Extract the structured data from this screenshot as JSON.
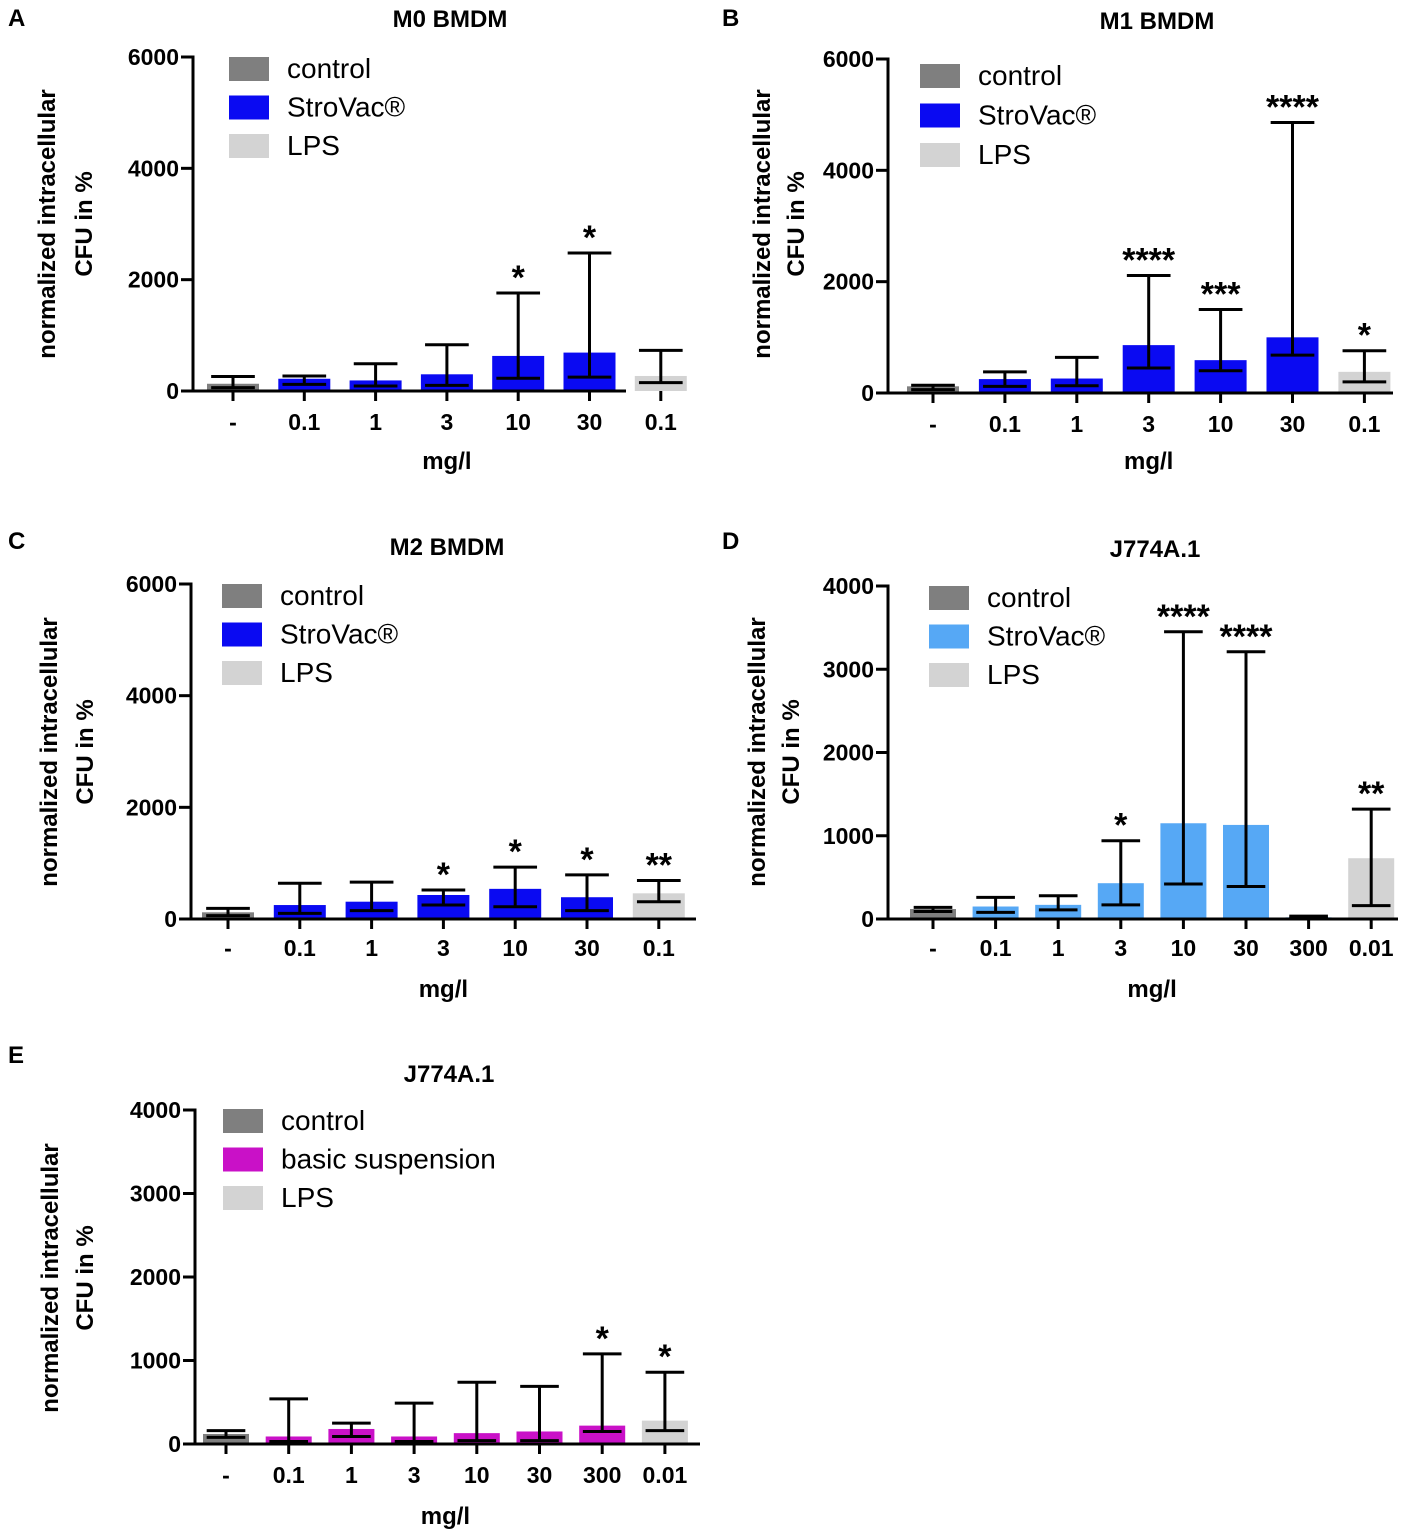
{
  "chart_data": [
    {
      "id": "A",
      "type": "bar",
      "panel_label": "A",
      "title": "M0 BMDM",
      "ylabel_line1": "normalized intracellular",
      "ylabel_line2": "CFU in %",
      "xlabel": "mg/l",
      "ylim": [
        0,
        6000
      ],
      "yticks": [
        0,
        2000,
        4000,
        6000
      ],
      "categories": [
        "-",
        "0.1",
        "1",
        "3",
        "10",
        "30",
        "0.1"
      ],
      "groups": [
        "control",
        "strovac",
        "strovac",
        "strovac",
        "strovac",
        "strovac",
        "lps"
      ],
      "values": [
        130,
        220,
        190,
        300,
        630,
        690,
        270
      ],
      "err_low": [
        60,
        120,
        90,
        100,
        230,
        250,
        150
      ],
      "err_high": [
        260,
        270,
        490,
        830,
        1760,
        2480,
        730
      ],
      "significance": [
        "",
        "",
        "",
        "",
        "*",
        "*",
        ""
      ],
      "legend": [
        {
          "key": "control",
          "label": "control",
          "color": "#7f7f7f"
        },
        {
          "key": "strovac",
          "label": "StroVac®",
          "color": "#0a0af2"
        },
        {
          "key": "lps",
          "label": "LPS",
          "color": "#d3d3d3"
        }
      ]
    },
    {
      "id": "B",
      "type": "bar",
      "panel_label": "B",
      "title": "M1 BMDM",
      "ylabel_line1": "normalized intracellular",
      "ylabel_line2": "CFU in %",
      "xlabel": "mg/l",
      "ylim": [
        0,
        6000
      ],
      "yticks": [
        0,
        2000,
        4000,
        6000
      ],
      "categories": [
        "-",
        "0.1",
        "1",
        "3",
        "10",
        "30",
        "0.1"
      ],
      "groups": [
        "control",
        "strovac",
        "strovac",
        "strovac",
        "strovac",
        "strovac",
        "lps"
      ],
      "values": [
        120,
        250,
        260,
        860,
        590,
        1000,
        380
      ],
      "err_low": [
        60,
        120,
        130,
        450,
        400,
        680,
        200
      ],
      "err_high": [
        140,
        380,
        640,
        2110,
        1500,
        4860,
        760
      ],
      "significance": [
        "",
        "",
        "",
        "****",
        "***",
        "****",
        "*"
      ],
      "legend": [
        {
          "key": "control",
          "label": "control",
          "color": "#7f7f7f"
        },
        {
          "key": "strovac",
          "label": "StroVac®",
          "color": "#0a0af2"
        },
        {
          "key": "lps",
          "label": "LPS",
          "color": "#d3d3d3"
        }
      ]
    },
    {
      "id": "C",
      "type": "bar",
      "panel_label": "C",
      "title": "M2 BMDM",
      "ylabel_line1": "normalized intracellular",
      "ylabel_line2": "CFU in %",
      "xlabel": "mg/l",
      "ylim": [
        0,
        6000
      ],
      "yticks": [
        0,
        2000,
        4000,
        6000
      ],
      "categories": [
        "-",
        "0.1",
        "1",
        "3",
        "10",
        "30",
        "0.1"
      ],
      "groups": [
        "control",
        "strovac",
        "strovac",
        "strovac",
        "strovac",
        "strovac",
        "lps"
      ],
      "values": [
        120,
        250,
        310,
        430,
        540,
        390,
        460
      ],
      "err_low": [
        60,
        100,
        150,
        250,
        220,
        150,
        310
      ],
      "err_high": [
        190,
        640,
        660,
        520,
        930,
        790,
        690
      ],
      "significance": [
        "",
        "",
        "",
        "*",
        "*",
        "*",
        "**"
      ],
      "legend": [
        {
          "key": "control",
          "label": "control",
          "color": "#7f7f7f"
        },
        {
          "key": "strovac",
          "label": "StroVac®",
          "color": "#0a0af2"
        },
        {
          "key": "lps",
          "label": "LPS",
          "color": "#d3d3d3"
        }
      ]
    },
    {
      "id": "D",
      "type": "bar",
      "panel_label": "D",
      "title": "J774A.1",
      "ylabel_line1": "normalized intracellular",
      "ylabel_line2": "CFU in %",
      "xlabel": "mg/l",
      "ylim": [
        0,
        4000
      ],
      "yticks": [
        0,
        1000,
        2000,
        3000,
        4000
      ],
      "categories": [
        "-",
        "0.1",
        "1",
        "3",
        "10",
        "30",
        "300",
        "0.01"
      ],
      "groups": [
        "control",
        "strovac",
        "strovac",
        "strovac",
        "strovac",
        "strovac",
        "strovac",
        "lps"
      ],
      "values": [
        120,
        150,
        170,
        430,
        1150,
        1130,
        20,
        730
      ],
      "err_low": [
        90,
        80,
        110,
        170,
        420,
        390,
        10,
        160
      ],
      "err_high": [
        140,
        260,
        280,
        940,
        3450,
        3210,
        35,
        1320
      ],
      "significance": [
        "",
        "",
        "",
        "*",
        "****",
        "****",
        "",
        "**"
      ],
      "legend": [
        {
          "key": "control",
          "label": "control",
          "color": "#7f7f7f"
        },
        {
          "key": "strovac",
          "label": "StroVac®",
          "color": "#56a8f5"
        },
        {
          "key": "lps",
          "label": "LPS",
          "color": "#d3d3d3"
        }
      ]
    },
    {
      "id": "E",
      "type": "bar",
      "panel_label": "E",
      "title": "J774A.1",
      "ylabel_line1": "normalized intracellular",
      "ylabel_line2": "CFU in %",
      "xlabel": "mg/l",
      "ylim": [
        0,
        4000
      ],
      "yticks": [
        0,
        1000,
        2000,
        3000,
        4000
      ],
      "categories": [
        "-",
        "0.1",
        "1",
        "3",
        "10",
        "30",
        "300",
        "0.01"
      ],
      "groups": [
        "control",
        "basic",
        "basic",
        "basic",
        "basic",
        "basic",
        "basic",
        "lps"
      ],
      "values": [
        120,
        90,
        180,
        90,
        130,
        150,
        220,
        280
      ],
      "err_low": [
        80,
        30,
        90,
        30,
        40,
        40,
        150,
        160
      ],
      "err_high": [
        160,
        540,
        250,
        490,
        740,
        690,
        1080,
        860
      ],
      "significance": [
        "",
        "",
        "",
        "",
        "",
        "",
        "*",
        "*"
      ],
      "legend": [
        {
          "key": "control",
          "label": "control",
          "color": "#7f7f7f"
        },
        {
          "key": "basic",
          "label": "basic suspension",
          "color": "#c911c7"
        },
        {
          "key": "lps",
          "label": "LPS",
          "color": "#d3d3d3"
        }
      ]
    }
  ]
}
